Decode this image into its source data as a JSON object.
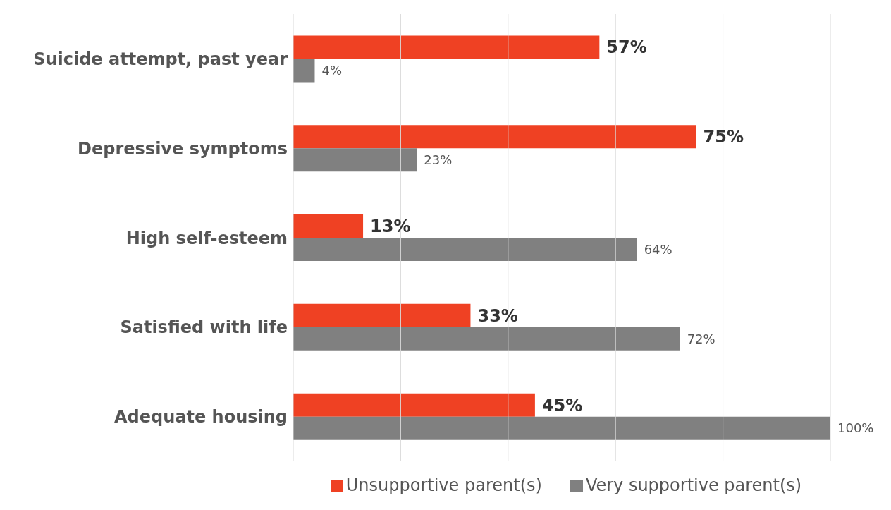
{
  "chart_data": {
    "type": "bar",
    "orientation": "horizontal",
    "categories": [
      "Suicide attempt, past year",
      "Depressive symptoms",
      "High self-esteem",
      "Satisfied with life",
      "Adequate housing"
    ],
    "series": [
      {
        "name": "Unsupportive parent(s)",
        "color": "#ef4123",
        "values": [
          57,
          75,
          13,
          33,
          45
        ],
        "value_labels": [
          "57%",
          "75%",
          "13%",
          "33%",
          "45%"
        ]
      },
      {
        "name": "Very supportive parent(s)",
        "color": "#808080",
        "values": [
          4,
          23,
          64,
          72,
          100
        ],
        "value_labels": [
          "4%",
          "23%",
          "64%",
          "72%",
          "100%"
        ]
      }
    ],
    "xlim": [
      0,
      100
    ],
    "xticks": [
      {
        "value": 0,
        "label": null
      },
      {
        "value": 20,
        "label": null
      },
      {
        "value": 40,
        "label": null
      },
      {
        "value": 60,
        "label": null
      },
      {
        "value": 80,
        "label": null
      },
      {
        "value": 100,
        "label": null
      }
    ],
    "tick_labels": "y",
    "grid": "x",
    "legend": "bottom"
  }
}
